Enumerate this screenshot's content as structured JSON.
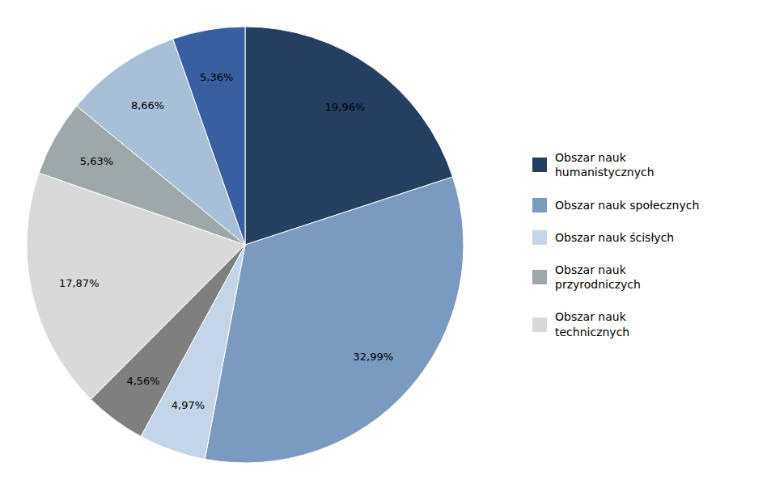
{
  "chart_data": {
    "type": "pie",
    "values": [
      19.96,
      32.99,
      4.97,
      4.56,
      17.87,
      5.63,
      8.66,
      5.36
    ],
    "value_labels": [
      "19,96%",
      "32,99%",
      "4,97%",
      "4,56%",
      "17,87%",
      "5,63%",
      "8,66%",
      "5,36%"
    ],
    "colors": [
      "#243F60",
      "#7A9BBF",
      "#C5D5E8",
      "#7F7F7F",
      "#D9D9D9",
      "#9FA8A8",
      "#A8BFD8",
      "#3860A0"
    ],
    "data_labels": true,
    "legend": "right",
    "legend_entries": [
      {
        "name": "Obszar nauk\nhumanistycznych",
        "color": "#243F60"
      },
      {
        "name": "Obszar nauk społecznych",
        "color": "#7A9BBF"
      },
      {
        "name": "Obszar nauk ścisłych",
        "color": "#C5D5E8"
      },
      {
        "name": "Obszar nauk\nprzyrodniczych",
        "color": "#9FA8A8"
      },
      {
        "name": "Obszar nauk\ntechnicznych",
        "color": "#D9D9D9"
      }
    ]
  }
}
